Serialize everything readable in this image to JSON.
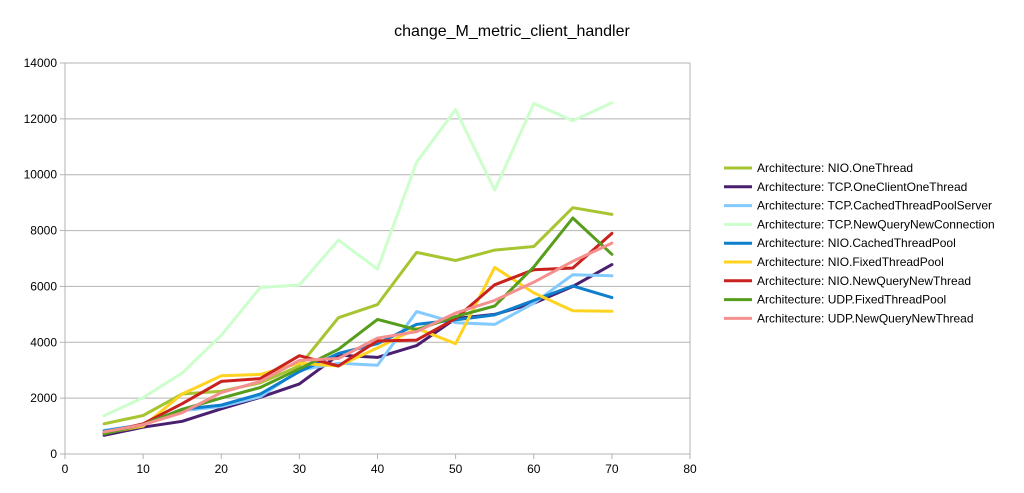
{
  "chart_data": {
    "type": "line",
    "title": "change_M_metric_client_handler",
    "xlabel": "",
    "ylabel": "",
    "xlim": [
      0,
      80
    ],
    "ylim": [
      0,
      14000
    ],
    "x_ticks": [
      0,
      10,
      20,
      30,
      40,
      50,
      60,
      70,
      80
    ],
    "y_ticks": [
      0,
      2000,
      4000,
      6000,
      8000,
      10000,
      12000,
      14000
    ],
    "grid": "horizontal",
    "legend_position": "right",
    "x": [
      5,
      10,
      15,
      20,
      25,
      30,
      35,
      40,
      45,
      50,
      55,
      60,
      65,
      70
    ],
    "series": [
      {
        "name": "Architecture: NIO.OneThread",
        "color": "#a6c531",
        "values": [
          1080,
          1380,
          2150,
          2250,
          2550,
          3150,
          4880,
          5350,
          7220,
          6930,
          7300,
          7430,
          8820,
          8580
        ]
      },
      {
        "name": "Architecture: TCP.OneClientOneThread",
        "color": "#4b1f6f",
        "values": [
          670,
          960,
          1170,
          1620,
          2030,
          2510,
          3540,
          3460,
          3880,
          4850,
          5000,
          5400,
          6000,
          6780
        ]
      },
      {
        "name": "Architecture: TCP.CachedThreadPoolServer",
        "color": "#83caff",
        "values": [
          850,
          1050,
          1550,
          1700,
          2050,
          3000,
          3250,
          3180,
          5100,
          4700,
          4640,
          5400,
          6420,
          6380
        ]
      },
      {
        "name": "Architecture: TCP.NewQueryNewConnection",
        "color": "#ccffcc",
        "values": [
          1370,
          2020,
          2900,
          4250,
          5960,
          6050,
          7660,
          6620,
          10450,
          12330,
          9450,
          12550,
          11930,
          12580
        ]
      },
      {
        "name": "Architecture: NIO.CachedThreadPool",
        "color": "#0e7fcc",
        "values": [
          820,
          1050,
          1600,
          1750,
          2150,
          2950,
          3600,
          3950,
          4640,
          4800,
          4980,
          5500,
          6020,
          5600
        ]
      },
      {
        "name": "Architecture: NIO.FixedThreadPool",
        "color": "#ffd320",
        "values": [
          750,
          1000,
          2150,
          2800,
          2850,
          3250,
          3150,
          3800,
          4500,
          3950,
          6680,
          5770,
          5130,
          5110
        ]
      },
      {
        "name": "Architecture: NIO.NewQueryNewThread",
        "color": "#c9211e",
        "values": [
          760,
          1080,
          1800,
          2600,
          2700,
          3520,
          3150,
          4050,
          4080,
          4850,
          6060,
          6600,
          6660,
          7900
        ]
      },
      {
        "name": "Architecture: UDP.FixedThreadPool",
        "color": "#579d1c",
        "values": [
          720,
          1050,
          1600,
          2000,
          2380,
          3050,
          3750,
          4820,
          4450,
          4920,
          5300,
          6700,
          8450,
          7150
        ]
      },
      {
        "name": "Architecture: UDP.NewQueryNewThread",
        "color": "#f5908f",
        "values": [
          790,
          1050,
          1480,
          2200,
          2600,
          3350,
          3420,
          4150,
          4380,
          5050,
          5500,
          6150,
          6900,
          7550
        ]
      }
    ]
  }
}
